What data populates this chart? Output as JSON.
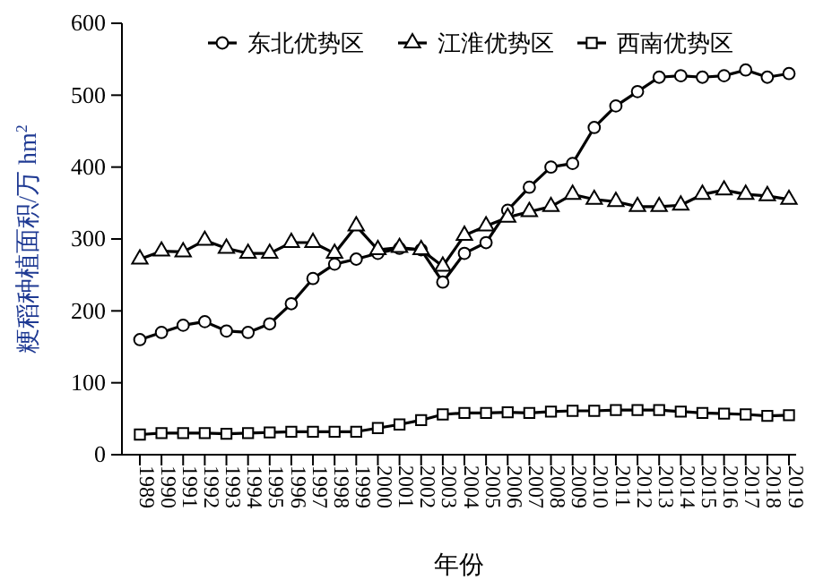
{
  "chart_data": {
    "type": "line",
    "xlabel": "年份",
    "ylabel": "粳稻种植面积/万 hm$^{2}$",
    "categories": [
      "1989",
      "1990",
      "1991",
      "1992",
      "1993",
      "1994",
      "1995",
      "1996",
      "1997",
      "1998",
      "1999",
      "2000",
      "2001",
      "2002",
      "2003",
      "2004",
      "2005",
      "2006",
      "2007",
      "2008",
      "2009",
      "2010",
      "2011",
      "2012",
      "2013",
      "2014",
      "2015",
      "2016",
      "2017",
      "2018",
      "2019"
    ],
    "series": [
      {
        "name": "东北优势区",
        "color": "#000000",
        "marker": "circle",
        "values": [
          160,
          170,
          180,
          185,
          172,
          170,
          182,
          210,
          245,
          265,
          272,
          280,
          287,
          285,
          240,
          280,
          295,
          340,
          372,
          400,
          405,
          455,
          485,
          505,
          525,
          527,
          525,
          527,
          535,
          525,
          530
        ]
      },
      {
        "name": "江淮优势区",
        "color": "#000000",
        "marker": "triangle",
        "values": [
          272,
          283,
          282,
          298,
          287,
          280,
          280,
          295,
          295,
          280,
          318,
          285,
          288,
          285,
          262,
          305,
          318,
          330,
          338,
          345,
          362,
          355,
          352,
          345,
          345,
          347,
          362,
          368,
          362,
          360,
          355
        ]
      },
      {
        "name": "西南优势区",
        "color": "#000000",
        "marker": "square",
        "values": [
          28,
          30,
          30,
          30,
          29,
          30,
          31,
          32,
          32,
          32,
          32,
          37,
          42,
          48,
          56,
          58,
          58,
          59,
          58,
          60,
          61,
          61,
          62,
          62,
          62,
          60,
          58,
          57,
          56,
          54,
          55
        ]
      }
    ],
    "ylim": [
      0,
      600
    ],
    "yticks": [
      0,
      100,
      200,
      300,
      400,
      500,
      600
    ],
    "grid": false,
    "legend": "top",
    "line_style": "solid"
  }
}
